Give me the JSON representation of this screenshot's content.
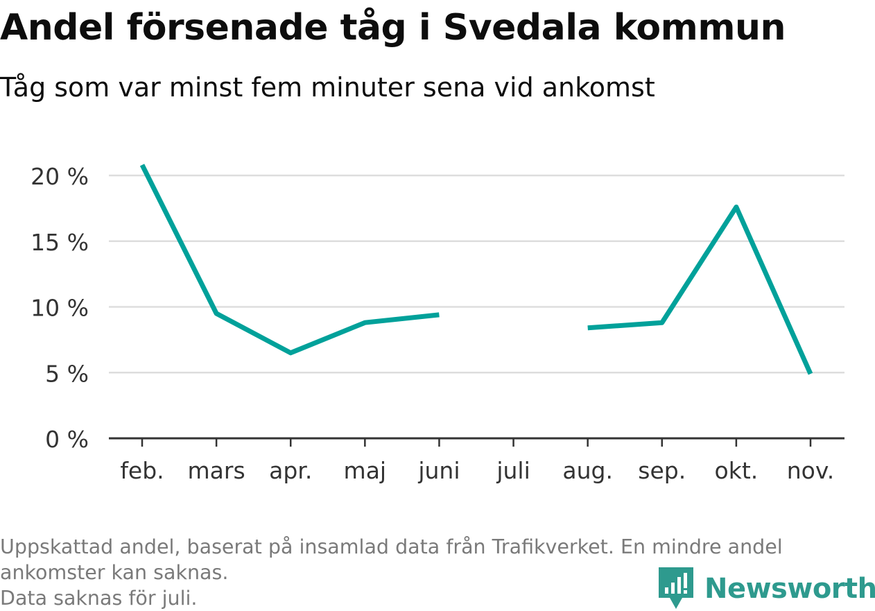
{
  "header": {
    "title": "Andel försenade tåg i Svedala kommun",
    "subtitle": "Tåg som var minst fem minuter sena vid ankomst"
  },
  "chart_data": {
    "type": "line",
    "title": "Andel försenade tåg i Svedala kommun",
    "subtitle": "Tåg som var minst fem minuter sena vid ankomst",
    "categories": [
      "feb.",
      "mars",
      "apr.",
      "maj",
      "juni",
      "juli",
      "aug.",
      "sep.",
      "okt.",
      "nov."
    ],
    "series": [
      {
        "values": [
          20.8,
          9.5,
          6.5,
          8.8,
          9.4,
          null,
          8.4,
          8.8,
          17.6,
          4.9
        ],
        "color": "#00a19a"
      }
    ],
    "yticks": [
      0,
      5,
      10,
      15,
      20
    ],
    "ytick_labels": [
      "0 %",
      "5 %",
      "10 %",
      "15 %",
      "20 %"
    ],
    "ylim": [
      0,
      21
    ],
    "xlabel": "",
    "ylabel": "",
    "grid": true,
    "gridline_color": "#dddddd"
  },
  "footer": {
    "note_line1": "Uppskattad andel, baserat på insamlad data från Trafikverket. En mindre andel",
    "note_line2": "ankomster kan saknas.",
    "note_line3": "Data saknas för juli.",
    "brand": "Newsworthy",
    "brand_color": "#2e9a8e"
  }
}
